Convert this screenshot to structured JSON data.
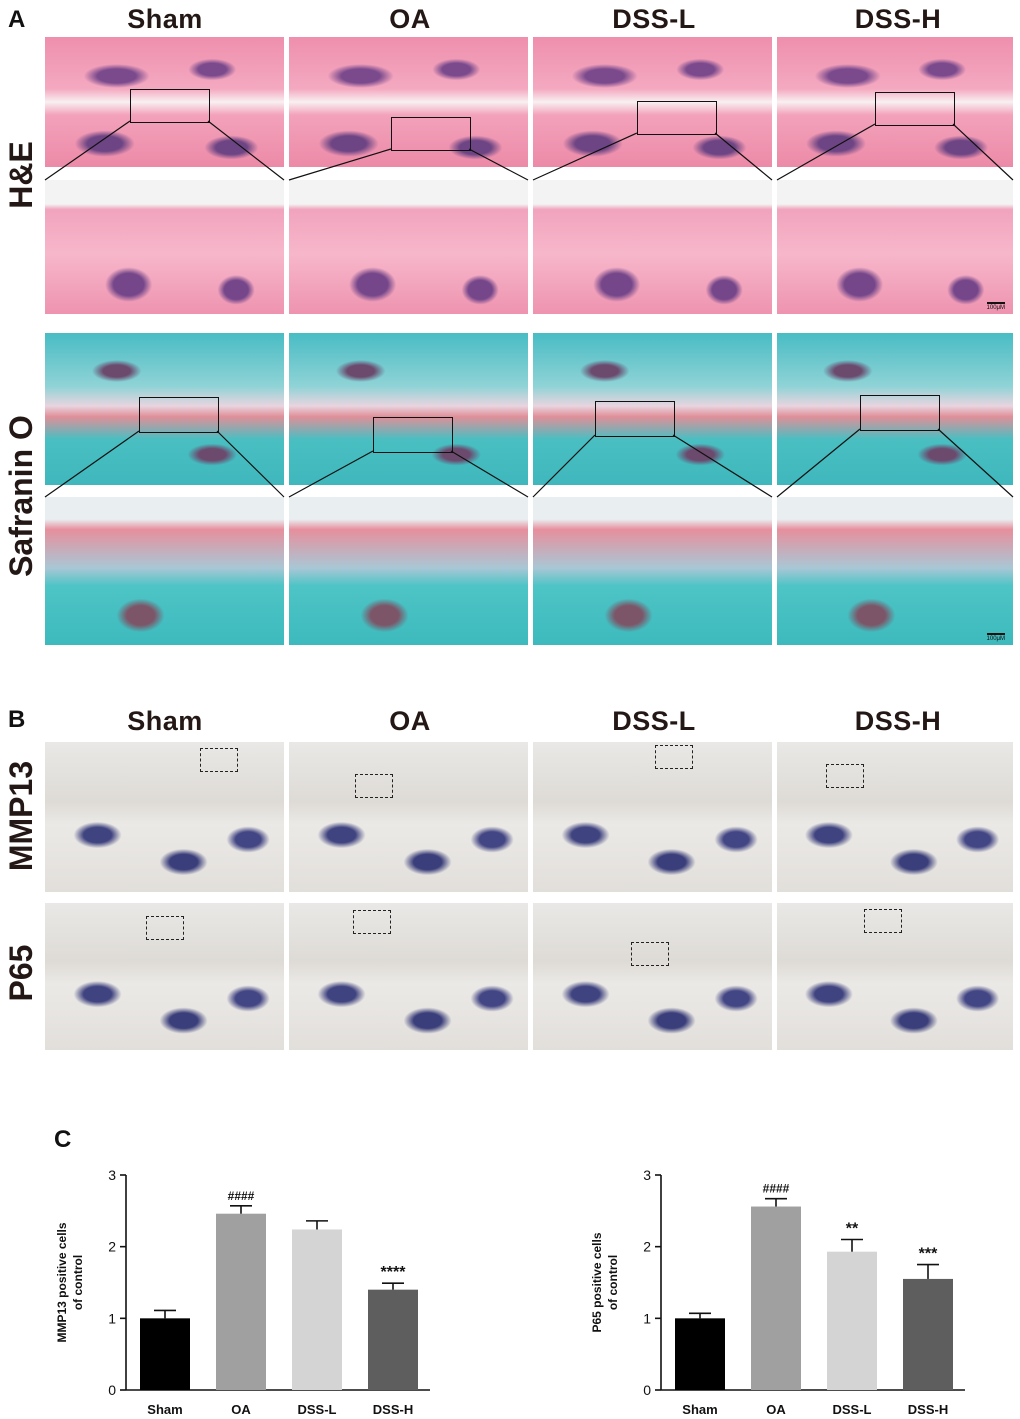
{
  "panels": {
    "a": "A",
    "b": "B",
    "c": "C"
  },
  "groups": [
    "Sham",
    "OA",
    "DSS-L",
    "DSS-H"
  ],
  "stains": {
    "he": "H&E",
    "safranin": "Safranin O",
    "mmp13": "MMP13",
    "p65": "P65"
  },
  "scale_bar_label": "100μM",
  "chart_data": [
    {
      "type": "bar",
      "categories": [
        "Sham",
        "OA",
        "DSS-L",
        "DSS-H"
      ],
      "values": [
        1.0,
        2.46,
        2.24,
        1.4
      ],
      "errors": [
        0.11,
        0.11,
        0.12,
        0.09
      ],
      "annotations": [
        "",
        "####",
        "",
        "****"
      ],
      "ylabel_line1": "MMP13 positive cells",
      "ylabel_line2": "of control",
      "ylim": [
        0,
        3
      ],
      "yticks": [
        0,
        1,
        2,
        3
      ],
      "colors": [
        "#000000",
        "#a0a0a0",
        "#d4d4d4",
        "#5e5e5e"
      ]
    },
    {
      "type": "bar",
      "categories": [
        "Sham",
        "OA",
        "DSS-L",
        "DSS-H"
      ],
      "values": [
        1.0,
        2.56,
        1.93,
        1.55
      ],
      "errors": [
        0.07,
        0.11,
        0.17,
        0.2
      ],
      "annotations": [
        "",
        "####",
        "**",
        "***"
      ],
      "ylabel_line1": "P65 positive cells",
      "ylabel_line2": "of control",
      "ylim": [
        0,
        3
      ],
      "yticks": [
        0,
        1,
        2,
        3
      ],
      "colors": [
        "#000000",
        "#a0a0a0",
        "#d4d4d4",
        "#5e5e5e"
      ]
    }
  ]
}
